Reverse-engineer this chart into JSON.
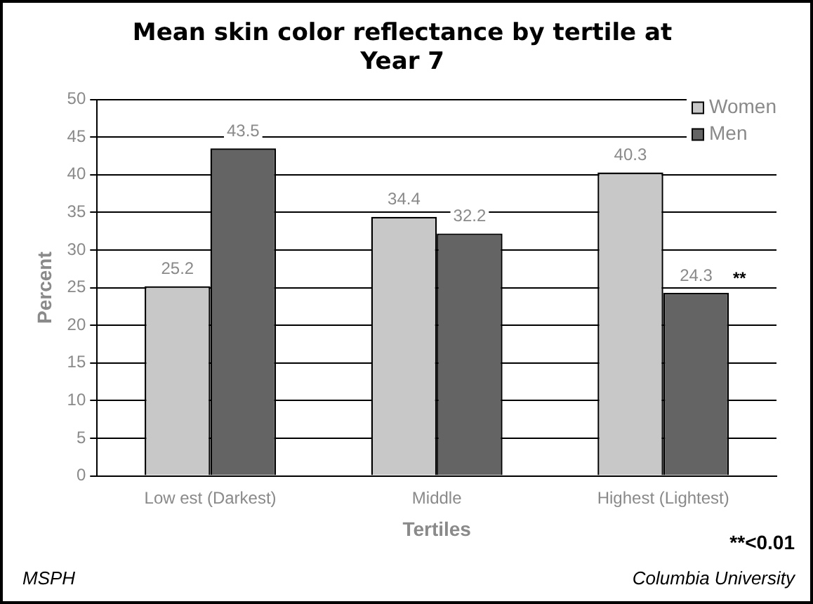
{
  "chart_data": {
    "type": "bar",
    "title": "Mean skin color reflectance by tertile at Year 7",
    "xlabel": "Tertiles",
    "ylabel": "Percent",
    "categories": [
      "Low est (Darkest)",
      "Middle",
      "Highest (Lightest)"
    ],
    "series": [
      {
        "name": "Women",
        "color": "#c8c8c8",
        "values": [
          25.2,
          34.4,
          40.3
        ]
      },
      {
        "name": "Men",
        "color": "#646464",
        "values": [
          43.5,
          32.2,
          24.3
        ]
      }
    ],
    "ylim": [
      0,
      50
    ],
    "yticks": [
      0,
      5,
      10,
      15,
      20,
      25,
      30,
      35,
      40,
      45,
      50
    ],
    "grid": "y",
    "legend": "top right",
    "data_labels": true,
    "annotations": [
      "**",
      "**<0.01",
      "MSPH",
      "Columbia University"
    ]
  }
}
